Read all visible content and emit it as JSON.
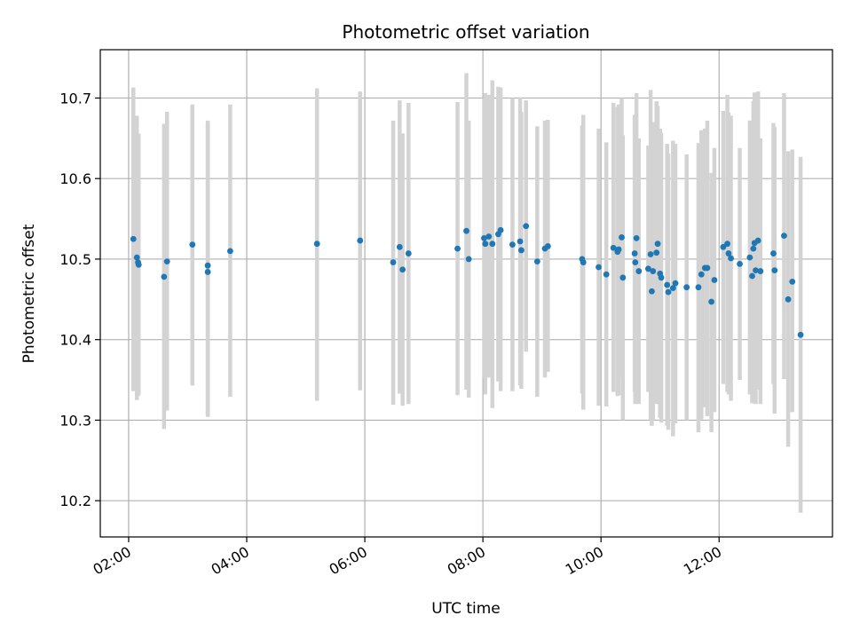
{
  "chart_data": {
    "type": "scatter",
    "title": "Photometric offset variation",
    "xlabel": "UTC time",
    "ylabel": "Photometric offset",
    "x_unit": "hours UTC",
    "xlim": [
      1.52,
      13.92
    ],
    "ylim": [
      10.155,
      10.76
    ],
    "x_ticks": [
      2,
      4,
      6,
      8,
      10,
      12
    ],
    "x_tick_labels": [
      "02:00",
      "04:00",
      "06:00",
      "08:00",
      "10:00",
      "12:00"
    ],
    "y_ticks": [
      10.2,
      10.3,
      10.4,
      10.5,
      10.6,
      10.7
    ],
    "y_tick_labels": [
      "10.2",
      "10.3",
      "10.4",
      "10.5",
      "10.6",
      "10.7"
    ],
    "grid": true,
    "colors": {
      "point": "#1f77b4",
      "errorbar": "#d3d3d3",
      "grid": "#b0b0b0",
      "axis": "#000000"
    },
    "points": [
      {
        "x": 2.08,
        "y": 10.525,
        "lo": 10.336,
        "hi": 10.713
      },
      {
        "x": 2.14,
        "y": 10.502,
        "lo": 10.325,
        "hi": 10.678
      },
      {
        "x": 2.16,
        "y": 10.496,
        "lo": 10.33,
        "hi": 10.656
      },
      {
        "x": 2.17,
        "y": 10.493,
        "lo": 10.332,
        "hi": 10.655
      },
      {
        "x": 2.6,
        "y": 10.478,
        "lo": 10.289,
        "hi": 10.668
      },
      {
        "x": 2.65,
        "y": 10.497,
        "lo": 10.312,
        "hi": 10.683
      },
      {
        "x": 3.08,
        "y": 10.518,
        "lo": 10.343,
        "hi": 10.692
      },
      {
        "x": 3.34,
        "y": 10.492,
        "lo": 10.304,
        "hi": 10.672
      },
      {
        "x": 3.34,
        "y": 10.484,
        "lo": 10.306,
        "hi": 10.668
      },
      {
        "x": 3.72,
        "y": 10.51,
        "lo": 10.329,
        "hi": 10.692
      },
      {
        "x": 5.19,
        "y": 10.519,
        "lo": 10.324,
        "hi": 10.712
      },
      {
        "x": 5.92,
        "y": 10.523,
        "lo": 10.337,
        "hi": 10.708
      },
      {
        "x": 6.48,
        "y": 10.496,
        "lo": 10.319,
        "hi": 10.672
      },
      {
        "x": 6.59,
        "y": 10.515,
        "lo": 10.333,
        "hi": 10.697
      },
      {
        "x": 6.64,
        "y": 10.487,
        "lo": 10.318,
        "hi": 10.656
      },
      {
        "x": 6.74,
        "y": 10.507,
        "lo": 10.32,
        "hi": 10.694
      },
      {
        "x": 7.57,
        "y": 10.513,
        "lo": 10.331,
        "hi": 10.695
      },
      {
        "x": 7.72,
        "y": 10.535,
        "lo": 10.338,
        "hi": 10.731
      },
      {
        "x": 7.76,
        "y": 10.5,
        "lo": 10.328,
        "hi": 10.672
      },
      {
        "x": 8.02,
        "y": 10.526,
        "lo": 10.352,
        "hi": 10.7
      },
      {
        "x": 8.04,
        "y": 10.519,
        "lo": 10.332,
        "hi": 10.706
      },
      {
        "x": 8.1,
        "y": 10.528,
        "lo": 10.353,
        "hi": 10.704
      },
      {
        "x": 8.16,
        "y": 10.519,
        "lo": 10.315,
        "hi": 10.722
      },
      {
        "x": 8.26,
        "y": 10.531,
        "lo": 10.348,
        "hi": 10.714
      },
      {
        "x": 8.3,
        "y": 10.536,
        "lo": 10.336,
        "hi": 10.713
      },
      {
        "x": 8.5,
        "y": 10.518,
        "lo": 10.336,
        "hi": 10.7
      },
      {
        "x": 8.63,
        "y": 10.522,
        "lo": 10.343,
        "hi": 10.701
      },
      {
        "x": 8.65,
        "y": 10.511,
        "lo": 10.339,
        "hi": 10.683
      },
      {
        "x": 8.73,
        "y": 10.541,
        "lo": 10.385,
        "hi": 10.697
      },
      {
        "x": 8.92,
        "y": 10.497,
        "lo": 10.329,
        "hi": 10.665
      },
      {
        "x": 9.05,
        "y": 10.513,
        "lo": 10.353,
        "hi": 10.672
      },
      {
        "x": 9.1,
        "y": 10.516,
        "lo": 10.36,
        "hi": 10.673
      },
      {
        "x": 9.68,
        "y": 10.5,
        "lo": 10.333,
        "hi": 10.666
      },
      {
        "x": 9.7,
        "y": 10.496,
        "lo": 10.313,
        "hi": 10.679
      },
      {
        "x": 9.96,
        "y": 10.49,
        "lo": 10.318,
        "hi": 10.662
      },
      {
        "x": 10.09,
        "y": 10.481,
        "lo": 10.317,
        "hi": 10.645
      },
      {
        "x": 10.21,
        "y": 10.514,
        "lo": 10.335,
        "hi": 10.694
      },
      {
        "x": 10.28,
        "y": 10.509,
        "lo": 10.33,
        "hi": 10.689
      },
      {
        "x": 10.3,
        "y": 10.512,
        "lo": 10.331,
        "hi": 10.692
      },
      {
        "x": 10.35,
        "y": 10.527,
        "lo": 10.353,
        "hi": 10.7
      },
      {
        "x": 10.37,
        "y": 10.477,
        "lo": 10.3,
        "hi": 10.654
      },
      {
        "x": 10.57,
        "y": 10.507,
        "lo": 10.335,
        "hi": 10.679
      },
      {
        "x": 10.58,
        "y": 10.496,
        "lo": 10.32,
        "hi": 10.672
      },
      {
        "x": 10.6,
        "y": 10.526,
        "lo": 10.346,
        "hi": 10.706
      },
      {
        "x": 10.64,
        "y": 10.485,
        "lo": 10.32,
        "hi": 10.65
      },
      {
        "x": 10.8,
        "y": 10.488,
        "lo": 10.335,
        "hi": 10.641
      },
      {
        "x": 10.84,
        "y": 10.506,
        "lo": 10.301,
        "hi": 10.71
      },
      {
        "x": 10.86,
        "y": 10.46,
        "lo": 10.293,
        "hi": 10.627
      },
      {
        "x": 10.88,
        "y": 10.485,
        "lo": 10.3,
        "hi": 10.67
      },
      {
        "x": 10.94,
        "y": 10.508,
        "lo": 10.32,
        "hi": 10.696
      },
      {
        "x": 10.96,
        "y": 10.519,
        "lo": 10.348,
        "hi": 10.69
      },
      {
        "x": 11.0,
        "y": 10.482,
        "lo": 10.303,
        "hi": 10.662
      },
      {
        "x": 11.02,
        "y": 10.477,
        "lo": 10.297,
        "hi": 10.657
      },
      {
        "x": 11.12,
        "y": 10.468,
        "lo": 10.293,
        "hi": 10.643
      },
      {
        "x": 11.14,
        "y": 10.459,
        "lo": 10.288,
        "hi": 10.631
      },
      {
        "x": 11.22,
        "y": 10.464,
        "lo": 10.28,
        "hi": 10.647
      },
      {
        "x": 11.26,
        "y": 10.47,
        "lo": 10.296,
        "hi": 10.643
      },
      {
        "x": 11.45,
        "y": 10.465,
        "lo": 10.3,
        "hi": 10.63
      },
      {
        "x": 11.65,
        "y": 10.465,
        "lo": 10.285,
        "hi": 10.644
      },
      {
        "x": 11.7,
        "y": 10.481,
        "lo": 10.301,
        "hi": 10.66
      },
      {
        "x": 11.76,
        "y": 10.489,
        "lo": 10.316,
        "hi": 10.662
      },
      {
        "x": 11.8,
        "y": 10.489,
        "lo": 10.305,
        "hi": 10.672
      },
      {
        "x": 11.87,
        "y": 10.447,
        "lo": 10.285,
        "hi": 10.607
      },
      {
        "x": 11.92,
        "y": 10.474,
        "lo": 10.31,
        "hi": 10.638
      },
      {
        "x": 12.07,
        "y": 10.515,
        "lo": 10.345,
        "hi": 10.684
      },
      {
        "x": 12.14,
        "y": 10.519,
        "lo": 10.335,
        "hi": 10.704
      },
      {
        "x": 12.16,
        "y": 10.507,
        "lo": 10.332,
        "hi": 10.682
      },
      {
        "x": 12.2,
        "y": 10.501,
        "lo": 10.324,
        "hi": 10.678
      },
      {
        "x": 12.35,
        "y": 10.494,
        "lo": 10.35,
        "hi": 10.638
      },
      {
        "x": 12.52,
        "y": 10.502,
        "lo": 10.332,
        "hi": 10.672
      },
      {
        "x": 12.56,
        "y": 10.479,
        "lo": 10.321,
        "hi": 10.637
      },
      {
        "x": 12.58,
        "y": 10.513,
        "lo": 10.33,
        "hi": 10.696
      },
      {
        "x": 12.6,
        "y": 10.52,
        "lo": 10.333,
        "hi": 10.707
      },
      {
        "x": 12.62,
        "y": 10.486,
        "lo": 10.32,
        "hi": 10.652
      },
      {
        "x": 12.66,
        "y": 10.523,
        "lo": 10.338,
        "hi": 10.708
      },
      {
        "x": 12.7,
        "y": 10.485,
        "lo": 10.32,
        "hi": 10.65
      },
      {
        "x": 12.92,
        "y": 10.507,
        "lo": 10.345,
        "hi": 10.669
      },
      {
        "x": 12.94,
        "y": 10.486,
        "lo": 10.308,
        "hi": 10.664
      },
      {
        "x": 13.1,
        "y": 10.529,
        "lo": 10.351,
        "hi": 10.706
      },
      {
        "x": 13.17,
        "y": 10.45,
        "lo": 10.267,
        "hi": 10.634
      },
      {
        "x": 13.24,
        "y": 10.472,
        "lo": 10.31,
        "hi": 10.636
      },
      {
        "x": 13.38,
        "y": 10.406,
        "lo": 10.185,
        "hi": 10.627
      }
    ]
  }
}
